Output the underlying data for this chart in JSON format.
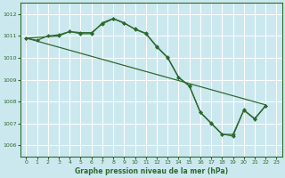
{
  "title": "Graphe pression niveau de la mer (hPa)",
  "bg_color": "#cce8ef",
  "grid_color": "#ffffff",
  "line_color": "#2d6a2d",
  "xlim": [
    -0.5,
    23.5
  ],
  "ylim": [
    1005.5,
    1012.5
  ],
  "yticks": [
    1006,
    1007,
    1008,
    1009,
    1010,
    1011,
    1012
  ],
  "xticks": [
    0,
    1,
    2,
    3,
    4,
    5,
    6,
    7,
    8,
    9,
    10,
    11,
    12,
    13,
    14,
    15,
    16,
    17,
    18,
    19,
    20,
    21,
    22,
    23
  ],
  "line1_x": [
    0,
    1,
    2,
    3,
    4,
    5,
    6,
    7,
    8,
    9,
    10,
    11,
    12,
    13,
    14,
    15,
    16,
    17,
    18,
    19,
    20,
    21,
    22
  ],
  "line1_y": [
    1010.9,
    1010.8,
    1011.0,
    1011.05,
    1011.2,
    1011.15,
    1011.15,
    1011.55,
    1011.78,
    1011.58,
    1011.32,
    1011.12,
    1010.52,
    1010.02,
    1009.12,
    1008.72,
    1007.52,
    1007.02,
    1006.52,
    1006.42,
    1007.62,
    1007.22,
    1007.82
  ],
  "line2_x": [
    0,
    3,
    4,
    5,
    6,
    7,
    8,
    9,
    10,
    11,
    12,
    13,
    14,
    15,
    16,
    17,
    18,
    19,
    20,
    21,
    22
  ],
  "line2_y": [
    1010.9,
    1011.0,
    1011.2,
    1011.1,
    1011.1,
    1011.6,
    1011.8,
    1011.6,
    1011.3,
    1011.1,
    1010.5,
    1010.0,
    1009.1,
    1008.7,
    1007.5,
    1007.0,
    1006.5,
    1006.5,
    1007.6,
    1007.2,
    1007.8
  ],
  "line3_x": [
    0,
    22
  ],
  "line3_y": [
    1010.9,
    1007.85
  ]
}
